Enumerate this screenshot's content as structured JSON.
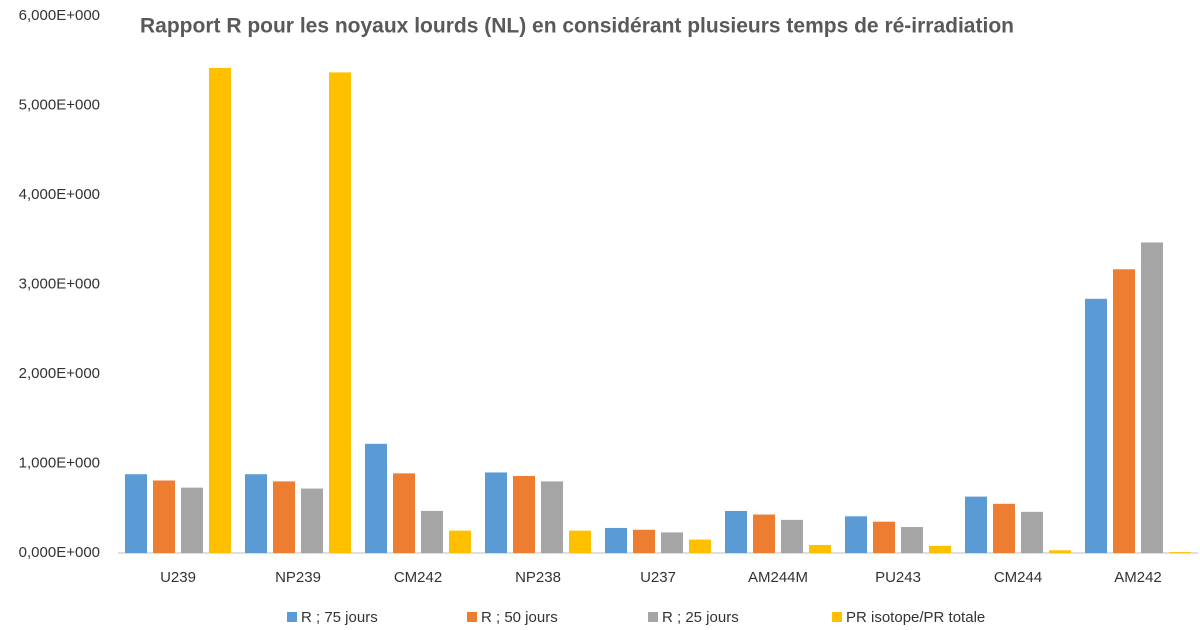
{
  "chart_data": {
    "type": "bar",
    "title": "Rapport R pour les noyaux lourds (NL) en considérant plusieurs temps de ré-irradiation",
    "categories": [
      "U239",
      "NP239",
      "CM242",
      "NP238",
      "U237",
      "AM244M",
      "PU243",
      "CM244",
      "AM242"
    ],
    "series": [
      {
        "name": "R ; 75 jours",
        "color": "#5b9bd5",
        "values": [
          0.88,
          0.88,
          1.22,
          0.9,
          0.28,
          0.47,
          0.41,
          0.63,
          2.84
        ]
      },
      {
        "name": "R ; 50 jours",
        "color": "#ed7d31",
        "values": [
          0.81,
          0.8,
          0.89,
          0.86,
          0.26,
          0.43,
          0.35,
          0.55,
          3.17
        ]
      },
      {
        "name": "R ; 25 jours",
        "color": "#a5a5a5",
        "values": [
          0.73,
          0.72,
          0.47,
          0.8,
          0.23,
          0.37,
          0.29,
          0.46,
          3.47
        ]
      },
      {
        "name": "PR isotope/PR totale",
        "color": "#ffc000",
        "values": [
          5.42,
          5.37,
          0.25,
          0.25,
          0.15,
          0.09,
          0.08,
          0.03,
          0.01
        ]
      }
    ],
    "ylim": [
      0,
      6
    ],
    "yticks": [
      {
        "value": 0,
        "label": "0,000E+000"
      },
      {
        "value": 1,
        "label": "1,000E+000"
      },
      {
        "value": 2,
        "label": "2,000E+000"
      },
      {
        "value": 3,
        "label": "3,000E+000"
      },
      {
        "value": 4,
        "label": "4,000E+000"
      },
      {
        "value": 5,
        "label": "5,000E+000"
      },
      {
        "value": 6,
        "label": "6,000E+000"
      }
    ],
    "grid": false,
    "legend": "bottom"
  }
}
